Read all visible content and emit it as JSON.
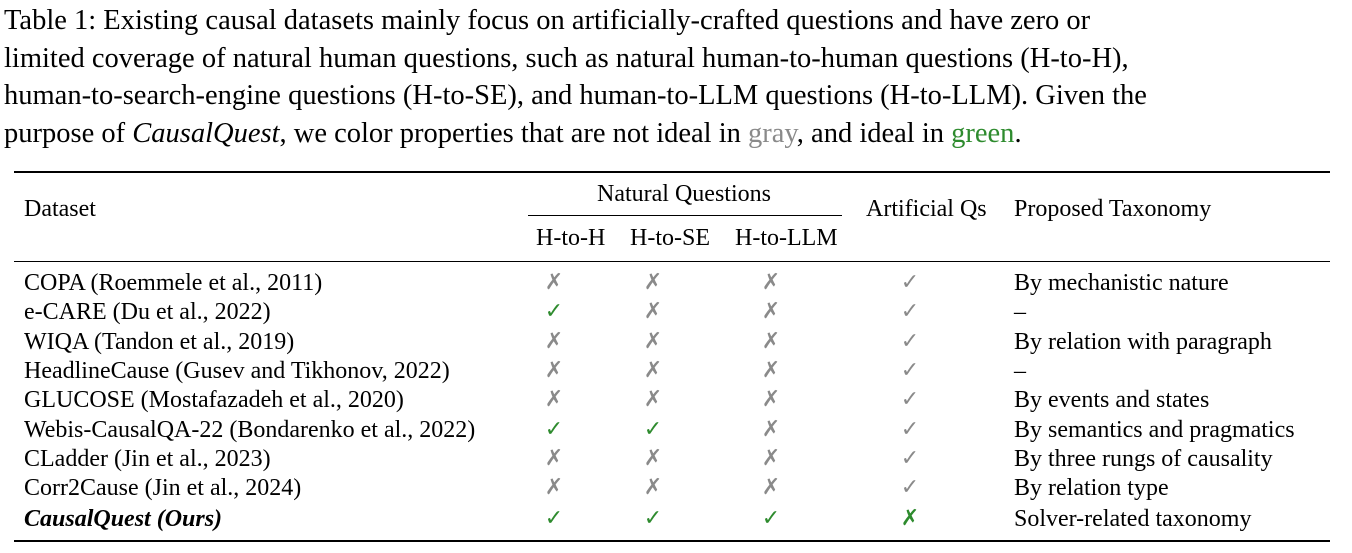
{
  "caption": {
    "line1": "Table 1: Existing causal datasets mainly focus on artificially-crafted questions and have zero or",
    "line2": "limited coverage of natural human questions, such as natural human-to-human questions (H-to-H),",
    "line3": "human-to-search-engine questions (H-to-SE), and human-to-LLM questions (H-to-LLM). Given the",
    "line4_a": "purpose of ",
    "line4_name": "CausalQuest",
    "line4_b": ", we color properties that are not ideal in ",
    "line4_gray": "gray",
    "line4_c": ", and ideal in ",
    "line4_green": "green",
    "line4_d": "."
  },
  "headers": {
    "dataset": "Dataset",
    "natural_questions": "Natural Questions",
    "h_to_h": "H-to-H",
    "h_to_se": "H-to-SE",
    "h_to_llm": "H-to-LLM",
    "artificial": "Artificial Qs",
    "taxonomy": "Proposed Taxonomy"
  },
  "symbols": {
    "cross": "✗",
    "check": "✓"
  },
  "colors": {
    "gray": "#8a8a8a",
    "green": "#2e8b2e"
  },
  "rows": [
    {
      "dataset": "COPA (Roemmele et al., 2011)",
      "h_to_h": "✗",
      "h_to_se": "✗",
      "h_to_llm": "✗",
      "artificial": "✓",
      "taxonomy": "By mechanistic nature"
    },
    {
      "dataset": "e-CARE (Du et al., 2022)",
      "h_to_h": "✓",
      "h_to_se": "✗",
      "h_to_llm": "✗",
      "artificial": "✓",
      "taxonomy": "–"
    },
    {
      "dataset": "WIQA (Tandon et al., 2019)",
      "h_to_h": "✗",
      "h_to_se": "✗",
      "h_to_llm": "✗",
      "artificial": "✓",
      "taxonomy": "By relation with paragraph"
    },
    {
      "dataset": "HeadlineCause (Gusev and Tikhonov, 2022)",
      "h_to_h": "✗",
      "h_to_se": "✗",
      "h_to_llm": "✗",
      "artificial": "✓",
      "taxonomy": "–"
    },
    {
      "dataset": "GLUCOSE (Mostafazadeh et al., 2020)",
      "h_to_h": "✗",
      "h_to_se": "✗",
      "h_to_llm": "✗",
      "artificial": "✓",
      "taxonomy": "By events and states"
    },
    {
      "dataset": "Webis-CausalQA-22 (Bondarenko et al., 2022)",
      "h_to_h": "✓",
      "h_to_se": "✓",
      "h_to_llm": "✗",
      "artificial": "✓",
      "taxonomy": "By semantics and pragmatics"
    },
    {
      "dataset": "CLadder (Jin et al., 2023)",
      "h_to_h": "✗",
      "h_to_se": "✗",
      "h_to_llm": "✗",
      "artificial": "✓",
      "taxonomy": "By three rungs of causality"
    },
    {
      "dataset": "Corr2Cause (Jin et al., 2024)",
      "h_to_h": "✗",
      "h_to_se": "✗",
      "h_to_llm": "✗",
      "artificial": "✓",
      "taxonomy": "By relation type"
    },
    {
      "dataset": "CausalQuest (Ours)",
      "h_to_h": "✓",
      "h_to_se": "✓",
      "h_to_llm": "✓",
      "artificial": "✗",
      "taxonomy": "Solver-related taxonomy"
    }
  ]
}
